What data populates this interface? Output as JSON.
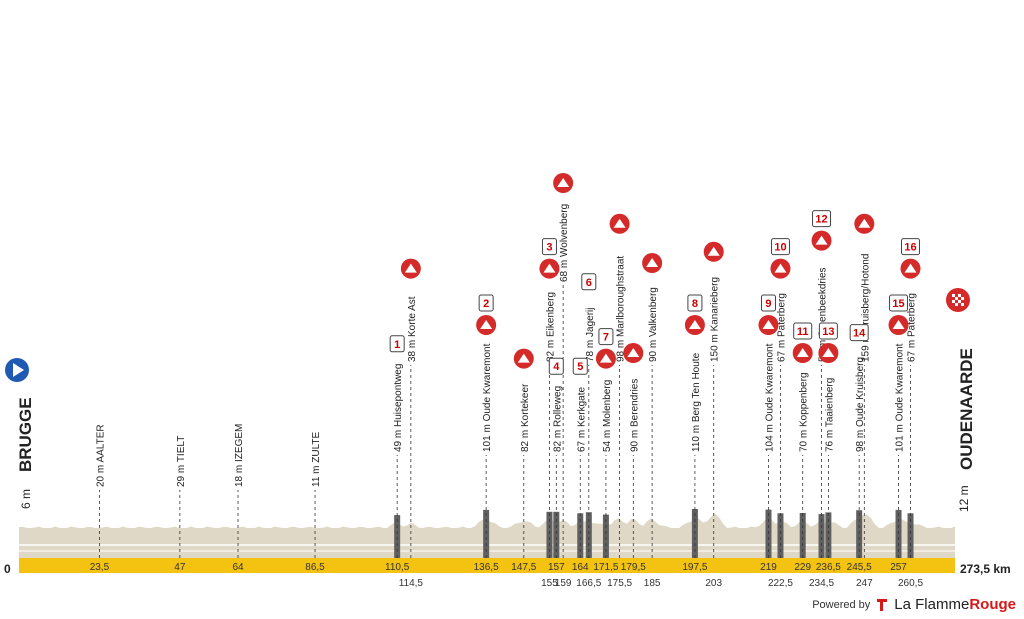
{
  "chart_data": {
    "type": "area",
    "title": "",
    "start": {
      "name": "BRUGGE",
      "altitude": "6 m"
    },
    "finish": {
      "name": "OUDENAARDE",
      "altitude": "12 m"
    },
    "x_total_label": "273,5 km",
    "x_zero_label": "0",
    "xlim": [
      0,
      273.5
    ],
    "waypoints": [
      {
        "km": 23.5,
        "km_label": "23,5",
        "row": 0,
        "label": "20 m AALTER",
        "kind": "town"
      },
      {
        "km": 47,
        "km_label": "47",
        "row": 0,
        "label": "29 m TIELT",
        "kind": "town"
      },
      {
        "km": 64,
        "km_label": "64",
        "row": 0,
        "label": "18 m IZEGEM",
        "kind": "town"
      },
      {
        "km": 86.5,
        "km_label": "86,5",
        "row": 0,
        "label": "11 m ZULTE",
        "kind": "town"
      },
      {
        "km": 110.5,
        "km_label": "110,5",
        "row": 0,
        "label": "49 m Huisepontweg",
        "kind": "sector",
        "number": "1"
      },
      {
        "km": 114.5,
        "km_label": "114,5",
        "row": 1,
        "label": "38 m Korte Ast",
        "kind": "climb"
      },
      {
        "km": 136.5,
        "km_label": "136,5",
        "row": 0,
        "label": "101 m Oude Kwaremont",
        "kind": "climb",
        "number": "2"
      },
      {
        "km": 147.5,
        "km_label": "147,5",
        "row": 0,
        "label": "82 m Kortekeer",
        "kind": "climb"
      },
      {
        "km": 155,
        "km_label": "155",
        "row": 1,
        "label": "82 m Eikenberg",
        "kind": "climb",
        "number": "3"
      },
      {
        "km": 157,
        "km_label": "157",
        "row": 0,
        "label": "82 m Rolleweg",
        "kind": "sector",
        "number": "4"
      },
      {
        "km": 159,
        "km_label": "159",
        "row": 2,
        "label": "68 m Wolvenberg",
        "kind": "climb"
      },
      {
        "km": 164,
        "km_label": "164",
        "row": 0,
        "label": "67 m Kerkgate",
        "kind": "sector",
        "number": "5"
      },
      {
        "km": 166.5,
        "km_label": "166,5",
        "row": 1,
        "label": "78 m Jagerij",
        "kind": "sector",
        "number": "6"
      },
      {
        "km": 171.5,
        "km_label": "171,5",
        "row": 0,
        "label": "54 m Molenberg",
        "kind": "climb",
        "number": "7"
      },
      {
        "km": 175.5,
        "km_label": "175,5",
        "row": 1,
        "label": "98 m Marlboroughstraat",
        "kind": "climb"
      },
      {
        "km": 179.5,
        "km_label": "179,5",
        "row": 0,
        "label": "90 m Berendries",
        "kind": "climb"
      },
      {
        "km": 185,
        "km_label": "185",
        "row": 1,
        "label": "90 m Valkenberg",
        "kind": "climb"
      },
      {
        "km": 197.5,
        "km_label": "197,5",
        "row": 0,
        "label": "110 m Berg Ten Houte",
        "kind": "climb",
        "number": "8"
      },
      {
        "km": 203,
        "km_label": "203",
        "row": 1,
        "label": "150 m Kanarieberg",
        "kind": "climb"
      },
      {
        "km": 219,
        "km_label": "219",
        "row": 0,
        "label": "104 m Oude Kwaremont",
        "kind": "climb",
        "number": "9"
      },
      {
        "km": 222.5,
        "km_label": "222,5",
        "row": 1,
        "label": "67 m Paterberg",
        "kind": "climb",
        "number": "10"
      },
      {
        "km": 229,
        "km_label": "229",
        "row": 0,
        "label": "70 m Koppenberg",
        "kind": "climb",
        "number": "11"
      },
      {
        "km": 234.5,
        "km_label": "234,5",
        "row": 1,
        "label": "59 m Steenbeekdries",
        "kind": "climb",
        "number": "12"
      },
      {
        "km": 236.5,
        "km_label": "236,5",
        "row": 0,
        "label": "76 m Taaienberg",
        "kind": "climb",
        "number": "13"
      },
      {
        "km": 245.5,
        "km_label": "245,5",
        "row": 0,
        "label": "98 m Oude Kruisberg",
        "kind": "sector",
        "number": "14"
      },
      {
        "km": 247,
        "km_label": "247",
        "row": 1,
        "label": "159 m Kruisberg/Hotond",
        "kind": "climb"
      },
      {
        "km": 257,
        "km_label": "257",
        "row": 0,
        "label": "101 m Oude Kwaremont",
        "kind": "climb",
        "number": "15"
      },
      {
        "km": 260.5,
        "km_label": "260,5",
        "row": 1,
        "label": "67 m Paterberg",
        "kind": "climb",
        "number": "16"
      }
    ],
    "colors": {
      "track": "#f4c311",
      "terrain": "#e0d8c6",
      "cobbles": "#606060",
      "marker": "#d42a2a",
      "flag_start": "#1e5ab4"
    }
  },
  "footer": {
    "powered_by": "Powered by",
    "brand_prefix": "La Flamme",
    "brand_suffix": "Rouge"
  }
}
